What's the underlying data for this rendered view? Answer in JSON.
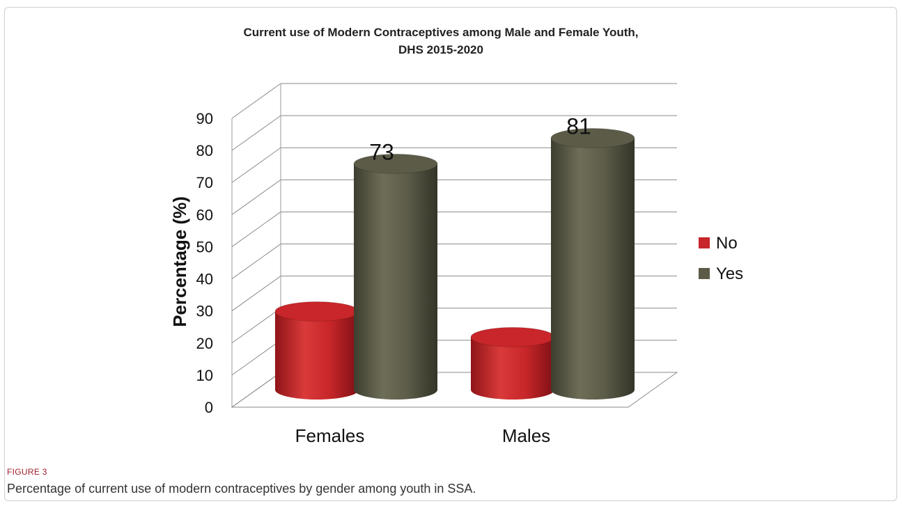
{
  "figure": {
    "label": "FIGURE 3",
    "caption": "Percentage of current use of modern contraceptives by gender among youth in SSA."
  },
  "chart_data": {
    "type": "bar",
    "style": "3d-cylinder",
    "title": "Current use of Modern Contraceptives among Male and Female Youth,",
    "subtitle": "DHS 2015-2020",
    "xlabel": "",
    "ylabel": "Percentage (%)",
    "ylim": [
      0,
      90
    ],
    "yticks": [
      "0",
      "10",
      "20",
      "30",
      "40",
      "50",
      "60",
      "70",
      "80",
      "90"
    ],
    "grid": true,
    "legend_position": "right",
    "categories": [
      "Females",
      "Males"
    ],
    "series": [
      {
        "name": "No",
        "values": [
          27,
          19
        ],
        "data_labels": [
          "",
          ""
        ],
        "color": "#c8262a"
      },
      {
        "name": "Yes",
        "values": [
          73,
          81
        ],
        "data_labels": [
          "73",
          "81"
        ],
        "color": "#5b5b48"
      }
    ]
  }
}
